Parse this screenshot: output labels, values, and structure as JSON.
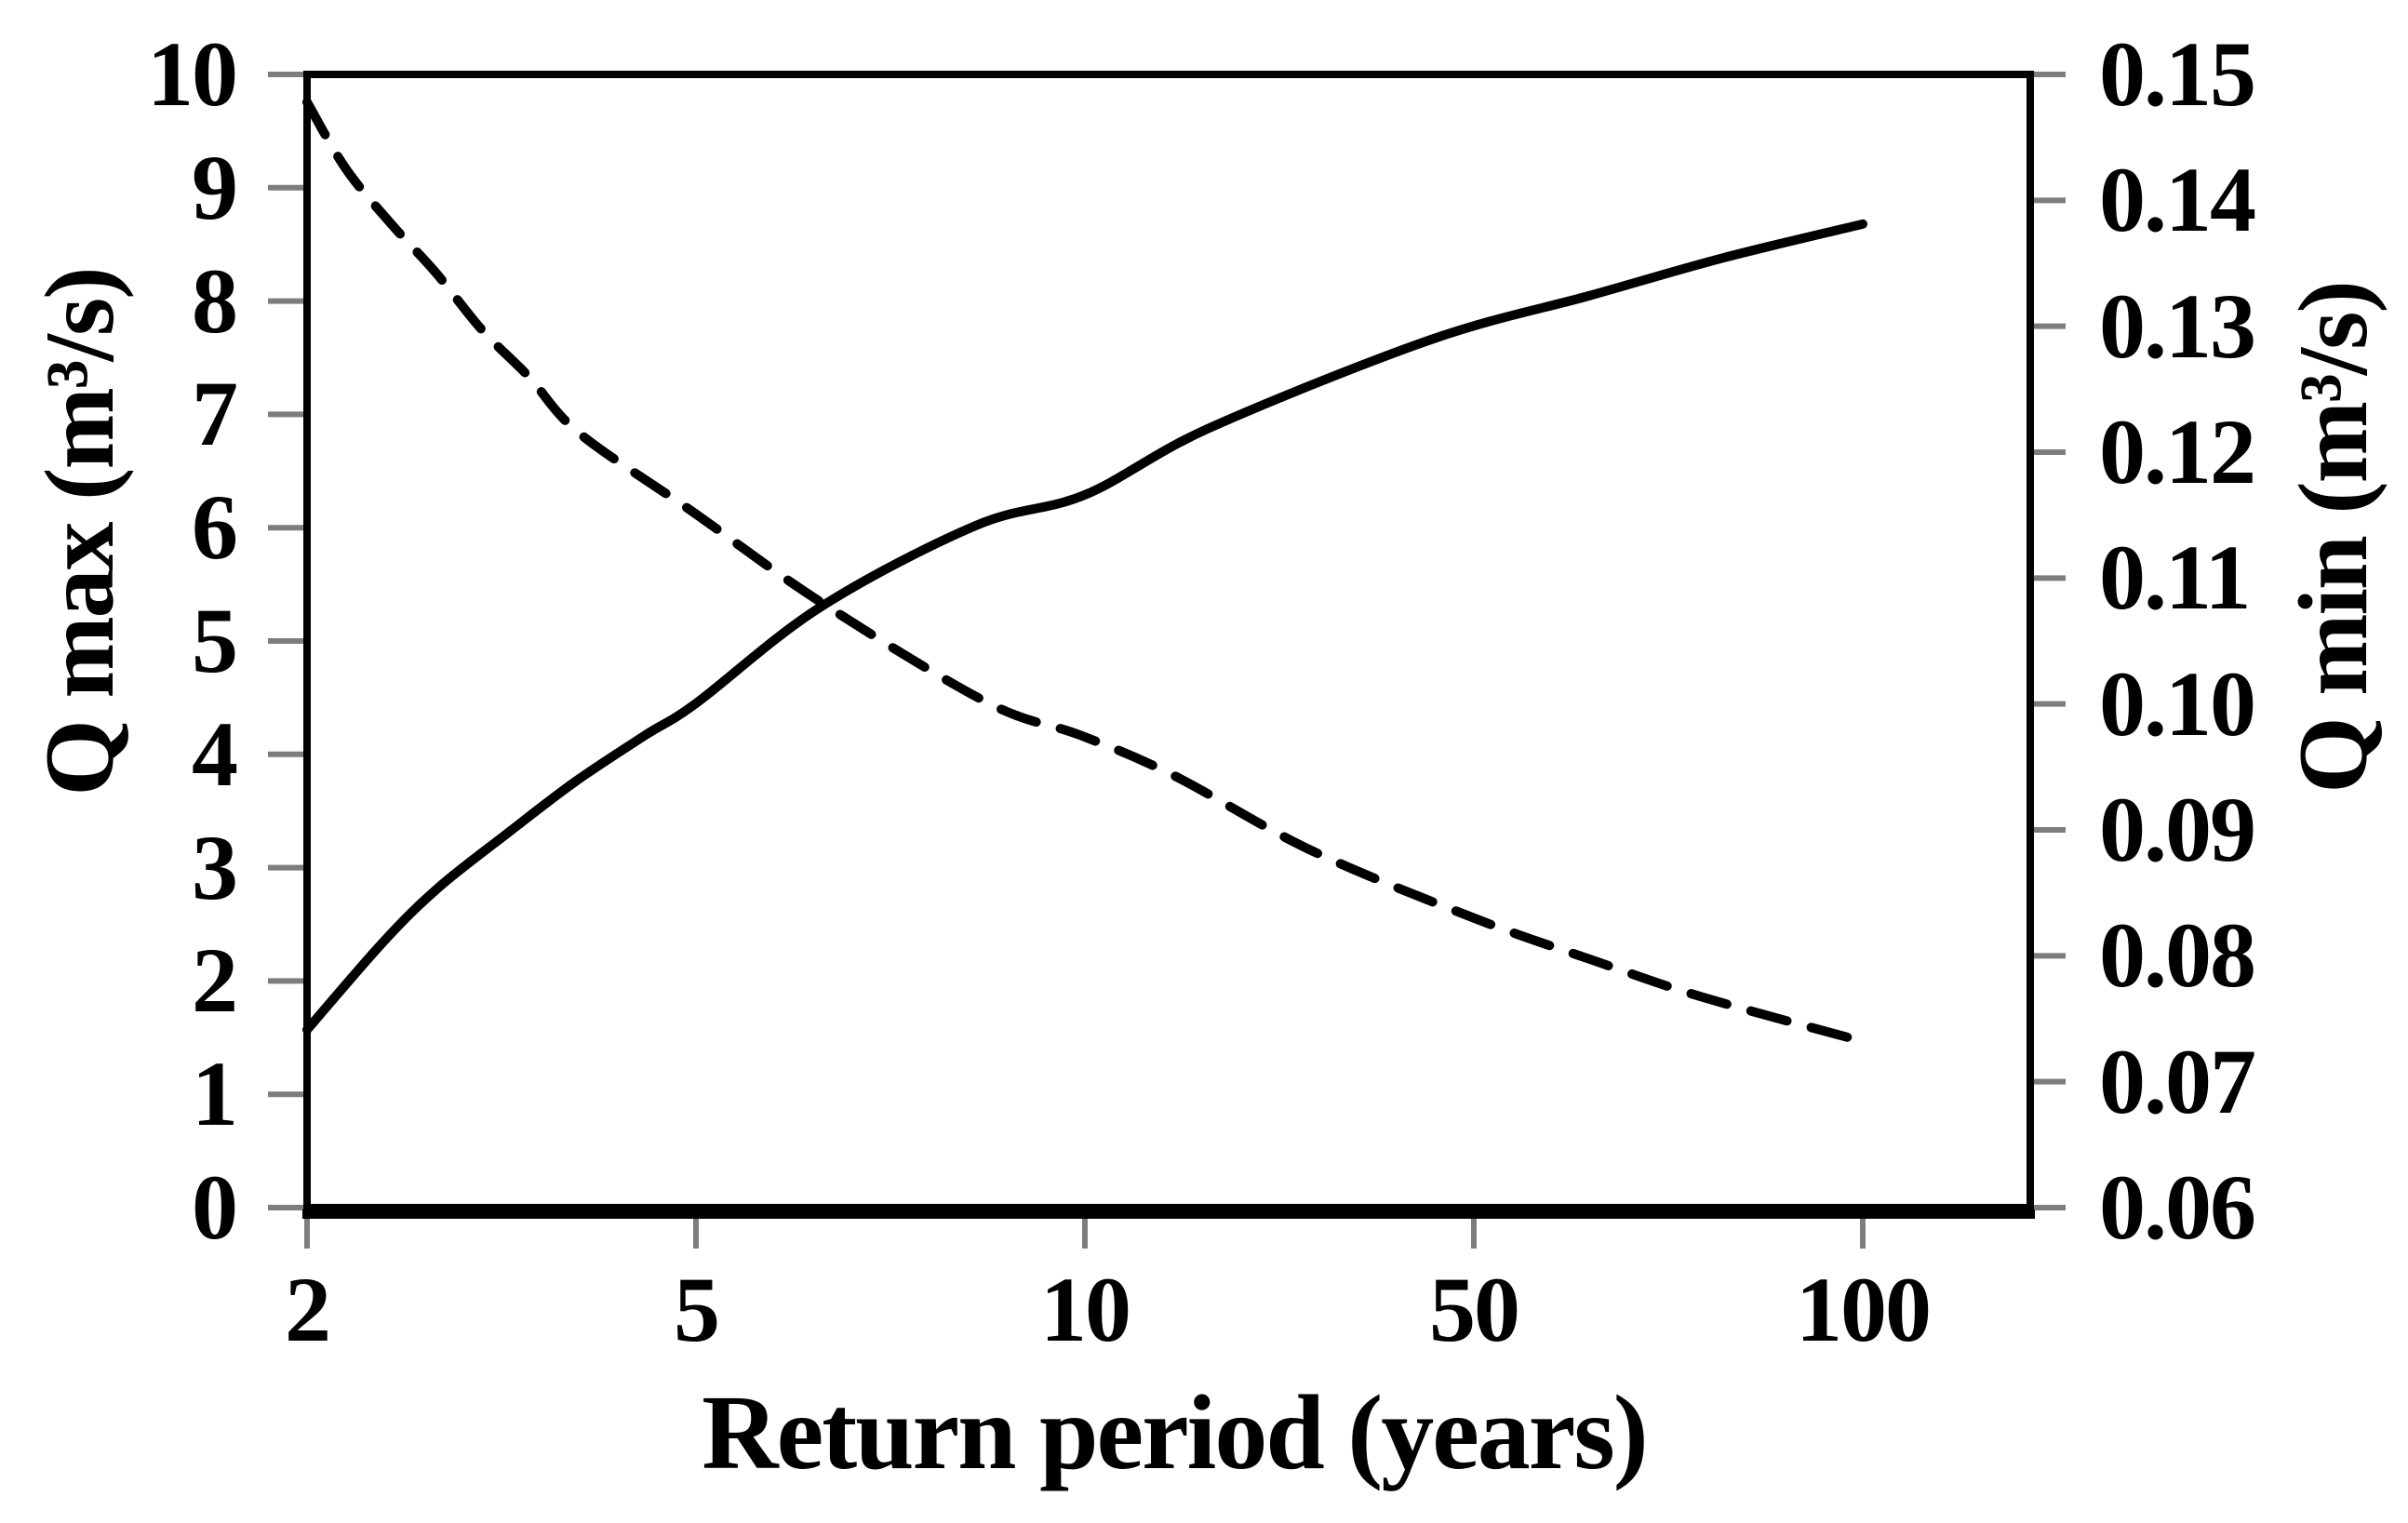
{
  "figure": {
    "kind": "dual-axis frequency curve chart",
    "background": "#ffffff",
    "ink": "#000000",
    "tick_color": "#7d7d7d"
  },
  "chart_data": {
    "type": "line",
    "title": "",
    "grid": false,
    "legend": "none",
    "x_axis": {
      "label": "Return period (years)",
      "scale": "log-like (labeled ticks evenly spaced)",
      "tick_labels": [
        "2",
        "5",
        "10",
        "50",
        "100"
      ]
    },
    "y_axis_left": {
      "label": "Q max (m³/s)",
      "min": 0,
      "max": 10,
      "tick_step": 1,
      "tick_labels": [
        "0",
        "1",
        "2",
        "3",
        "4",
        "5",
        "6",
        "7",
        "8",
        "9",
        "10"
      ]
    },
    "y_axis_right": {
      "label": "Q min (m³/s)",
      "min": 0.06,
      "max": 0.15,
      "tick_step": 0.01,
      "tick_labels": [
        "0.06",
        "0.07",
        "0.08",
        "0.09",
        "0.10",
        "0.11",
        "0.12",
        "0.13",
        "0.14",
        "0.15"
      ]
    },
    "categories": [
      2,
      5,
      10,
      50,
      100
    ],
    "series": [
      {
        "name": "Q max",
        "axis": "left",
        "line_style": "solid",
        "color": "#000000",
        "values_at_ticks": [
          1.6,
          4.5,
          6.3,
          7.8,
          8.7
        ],
        "points_u_v": [
          [
            0,
            1.57
          ],
          [
            0.2,
            2.36
          ],
          [
            0.34,
            2.83
          ],
          [
            0.51,
            3.29
          ],
          [
            0.69,
            3.76
          ],
          [
            0.87,
            4.17
          ],
          [
            1.0,
            4.45
          ],
          [
            1.32,
            5.3
          ],
          [
            1.72,
            6.02
          ],
          [
            2.0,
            6.29
          ],
          [
            2.32,
            6.88
          ],
          [
            2.89,
            7.66
          ],
          [
            3.3,
            8.05
          ],
          [
            3.64,
            8.38
          ],
          [
            4.0,
            8.68
          ]
        ]
      },
      {
        "name": "Q min",
        "axis": "right",
        "line_style": "dashed",
        "color": "#000000",
        "values_at_ticks": [
          0.148,
          0.115,
          0.097,
          0.083,
          0.073
        ],
        "points_u_v": [
          [
            0,
            0.1478
          ],
          [
            0.1,
            0.1425
          ],
          [
            0.22,
            0.138
          ],
          [
            0.33,
            0.1343
          ],
          [
            0.45,
            0.1297
          ],
          [
            0.57,
            0.126
          ],
          [
            0.7,
            0.1215
          ],
          [
            0.99,
            0.1153
          ],
          [
            1.32,
            0.1081
          ],
          [
            1.75,
            0.1001
          ],
          [
            1.99,
            0.0975
          ],
          [
            2.23,
            0.0943
          ],
          [
            2.58,
            0.0884
          ],
          [
            3.0,
            0.083
          ],
          [
            3.31,
            0.0796
          ],
          [
            3.59,
            0.0767
          ],
          [
            4.0,
            0.0732
          ]
        ]
      }
    ]
  }
}
